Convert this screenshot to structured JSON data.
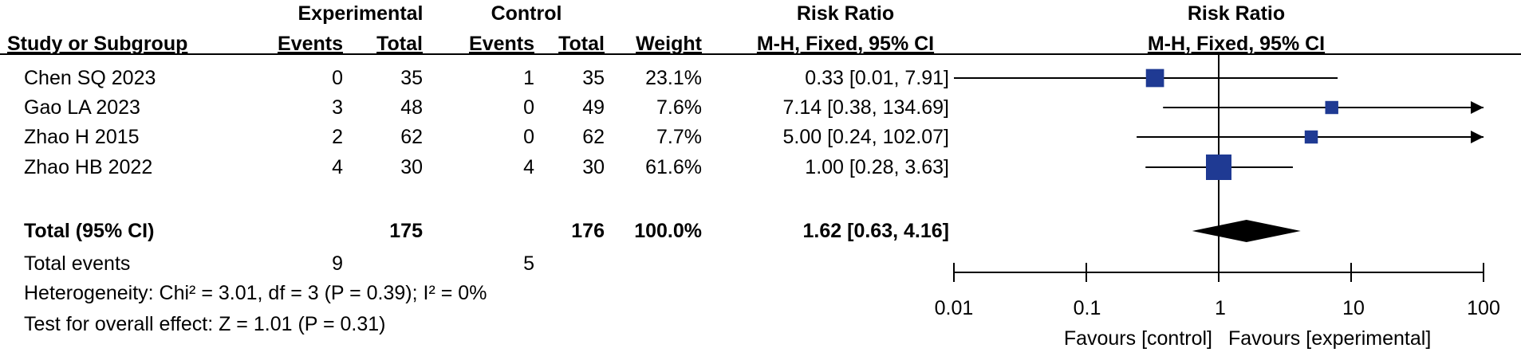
{
  "headers": {
    "experimental": "Experimental",
    "control": "Control",
    "risk_ratio": "Risk Ratio",
    "risk_ratio_plot": "Risk Ratio",
    "study": "Study or Subgroup",
    "exp_events": "Events",
    "exp_total": "Total",
    "ctl_events": "Events",
    "ctl_total": "Total",
    "weight": "Weight",
    "method": "M-H, Fixed, 95% CI",
    "method_plot": "M-H, Fixed, 95% CI"
  },
  "studies": [
    {
      "name": "Chen SQ 2023",
      "exp_events": "0",
      "exp_total": "35",
      "ctl_events": "1",
      "ctl_total": "35",
      "weight": "23.1%",
      "ci_text": "0.33 [0.01, 7.91]"
    },
    {
      "name": "Gao LA 2023",
      "exp_events": "3",
      "exp_total": "48",
      "ctl_events": "0",
      "ctl_total": "49",
      "weight": "7.6%",
      "ci_text": "7.14 [0.38, 134.69]"
    },
    {
      "name": "Zhao H 2015",
      "exp_events": "2",
      "exp_total": "62",
      "ctl_events": "0",
      "ctl_total": "62",
      "weight": "7.7%",
      "ci_text": "5.00 [0.24, 102.07]"
    },
    {
      "name": "Zhao HB 2022",
      "exp_events": "4",
      "exp_total": "30",
      "ctl_events": "4",
      "ctl_total": "30",
      "weight": "61.6%",
      "ci_text": "1.00 [0.28, 3.63]"
    }
  ],
  "total": {
    "label": "Total (95% CI)",
    "exp_total": "175",
    "ctl_total": "176",
    "weight": "100.0%",
    "ci_text": "1.62 [0.63, 4.16]"
  },
  "total_events": {
    "label": "Total events",
    "exp": "9",
    "ctl": "5"
  },
  "heterogeneity": "Heterogeneity: Chi² = 3.01, df = 3 (P = 0.39); I² = 0%",
  "overall_effect": "Test for overall effect: Z = 1.01 (P = 0.31)",
  "axis": {
    "ticks": [
      "0.01",
      "0.1",
      "1",
      "10",
      "100"
    ]
  },
  "favours": {
    "left": "Favours [control]",
    "right": "Favours [experimental]"
  },
  "chart_data": {
    "type": "forest",
    "scale": "log",
    "xlim": [
      0.01,
      100
    ],
    "reference_line": 1,
    "tick_values": [
      0.01,
      0.1,
      1,
      10,
      100
    ],
    "studies": [
      {
        "name": "Chen SQ 2023",
        "rr": 0.33,
        "lower": 0.01,
        "upper": 7.91,
        "weight": 23.1
      },
      {
        "name": "Gao LA 2023",
        "rr": 7.14,
        "lower": 0.38,
        "upper": 134.69,
        "weight": 7.6
      },
      {
        "name": "Zhao H 2015",
        "rr": 5.0,
        "lower": 0.24,
        "upper": 102.07,
        "weight": 7.7
      },
      {
        "name": "Zhao HB 2022",
        "rr": 1.0,
        "lower": 0.28,
        "upper": 3.63,
        "weight": 61.6
      }
    ],
    "pooled": {
      "rr": 1.62,
      "lower": 0.63,
      "upper": 4.16
    },
    "marker_color": "#1f3a93",
    "diamond_color": "#000000"
  }
}
